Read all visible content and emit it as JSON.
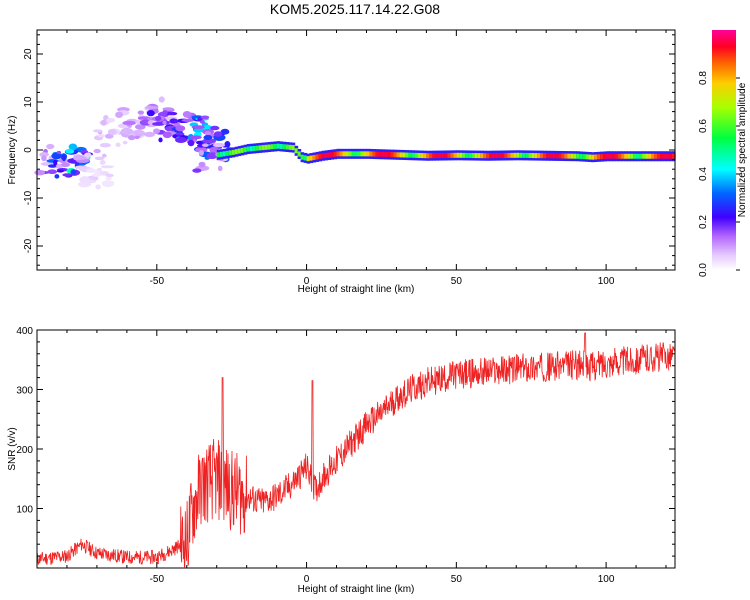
{
  "title": "KOM5.2025.117.14.22.G08",
  "chart_data": [
    {
      "type": "heatmap",
      "xlabel": "Height of straight line (km)",
      "ylabel": "Frequency (Hz)",
      "xlim": [
        -90,
        123
      ],
      "ylim": [
        -25,
        25
      ],
      "xticks": [
        -50,
        0,
        50,
        100
      ],
      "yticks": [
        -20,
        -10,
        0,
        10,
        20
      ],
      "colorbar": {
        "label": "Normalized spectral amplitude",
        "range": [
          0,
          1
        ],
        "ticks": [
          "0.0",
          "0.2",
          "0.4",
          "0.6",
          "0.8"
        ]
      },
      "ridge": {
        "x": [
          -30,
          -25,
          -20,
          -15,
          -10,
          -5,
          -2,
          0,
          5,
          10,
          20,
          30,
          40,
          50,
          60,
          70,
          80,
          90,
          95,
          100,
          110,
          123
        ],
        "frequency": [
          -1,
          -0.5,
          0.2,
          0.5,
          0.8,
          0.5,
          -1.5,
          -1.8,
          -1.2,
          -0.8,
          -0.8,
          -1,
          -1.2,
          -1.1,
          -1.2,
          -1.1,
          -1.2,
          -1.3,
          -1.5,
          -1.3,
          -1.3,
          -1.3
        ]
      },
      "scatter_blobs": [
        {
          "x": -85,
          "frequency": -2,
          "amplitude": 0.15
        },
        {
          "x": -80,
          "frequency": -2.5,
          "amplitude": 0.3
        },
        {
          "x": -78,
          "frequency": -1.8,
          "amplitude": 0.4
        },
        {
          "x": -72,
          "frequency": -3,
          "amplitude": 0.1
        },
        {
          "x": -70,
          "frequency": -5,
          "amplitude": 0.05
        },
        {
          "x": -65,
          "frequency": 4,
          "amplitude": 0.08
        },
        {
          "x": -60,
          "frequency": 6,
          "amplitude": 0.1
        },
        {
          "x": -55,
          "frequency": 5,
          "amplitude": 0.12
        },
        {
          "x": -50,
          "frequency": 8,
          "amplitude": 0.15
        },
        {
          "x": -48,
          "frequency": 6,
          "amplitude": 0.2
        },
        {
          "x": -45,
          "frequency": 5,
          "amplitude": 0.22
        },
        {
          "x": -40,
          "frequency": 4.5,
          "amplitude": 0.3
        },
        {
          "x": -38,
          "frequency": 5,
          "amplitude": 0.35
        },
        {
          "x": -35,
          "frequency": 3,
          "amplitude": 0.25
        },
        {
          "x": -30,
          "frequency": 1,
          "amplitude": 0.3
        },
        {
          "x": -32,
          "frequency": -1.5,
          "amplitude": 0.15
        }
      ]
    },
    {
      "type": "line",
      "xlabel": "Height of straight line (km)",
      "ylabel": "SNR (v/v)",
      "xlim": [
        -90,
        123
      ],
      "ylim": [
        0,
        400
      ],
      "xticks": [
        -50,
        0,
        50,
        100
      ],
      "yticks": [
        100,
        200,
        300,
        400
      ],
      "series": [
        {
          "color": "#ee2222",
          "x": [
            -90,
            -80,
            -75,
            -70,
            -60,
            -50,
            -45,
            -40,
            -38,
            -35,
            -30,
            -25,
            -20,
            -15,
            -10,
            -5,
            0,
            3,
            5,
            10,
            15,
            20,
            25,
            30,
            35,
            40,
            45,
            50,
            60,
            70,
            80,
            90,
            95,
            100,
            110,
            123
          ],
          "y": [
            15,
            20,
            40,
            25,
            18,
            18,
            30,
            45,
            100,
            140,
            150,
            130,
            120,
            110,
            120,
            140,
            170,
            130,
            150,
            180,
            210,
            240,
            260,
            285,
            300,
            312,
            318,
            325,
            330,
            335,
            338,
            342,
            338,
            345,
            350,
            358
          ]
        }
      ],
      "annotations_peaks": [
        {
          "x": -28,
          "y": 320
        },
        {
          "x": 2,
          "y": 315
        },
        {
          "x": 93,
          "y": 395
        }
      ]
    }
  ]
}
